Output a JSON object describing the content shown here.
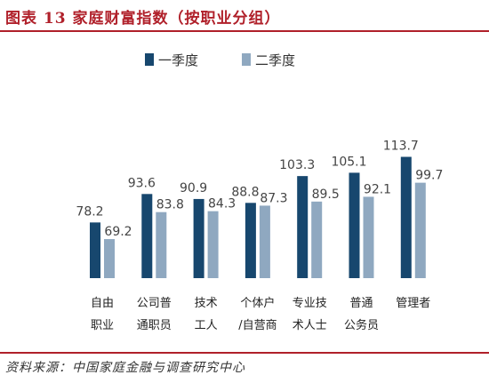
{
  "header": {
    "title": "图表 13    家庭财富指数（按职业分组）"
  },
  "footer": {
    "source": "资料来源：中国家庭金融与调查研究中心"
  },
  "chart_data": {
    "type": "bar",
    "categories": [
      [
        "自由",
        "职业"
      ],
      [
        "公司普",
        "通职员"
      ],
      [
        "技术",
        "工人"
      ],
      [
        "个体户",
        "/自营商"
      ],
      [
        "专业技",
        "术人士"
      ],
      [
        "普通",
        "公务员"
      ],
      [
        "管理者"
      ]
    ],
    "series": [
      {
        "name": "一季度",
        "values": [
          78.2,
          93.6,
          90.9,
          88.8,
          103.3,
          105.1,
          113.7
        ],
        "color": "#17476e"
      },
      {
        "name": "二季度",
        "values": [
          69.2,
          83.8,
          84.3,
          87.3,
          89.5,
          92.1,
          99.7
        ],
        "color": "#8fa8c0"
      }
    ],
    "value_labels": true,
    "legend_position": "top-center",
    "grid": false,
    "y_axis_visible": false
  }
}
